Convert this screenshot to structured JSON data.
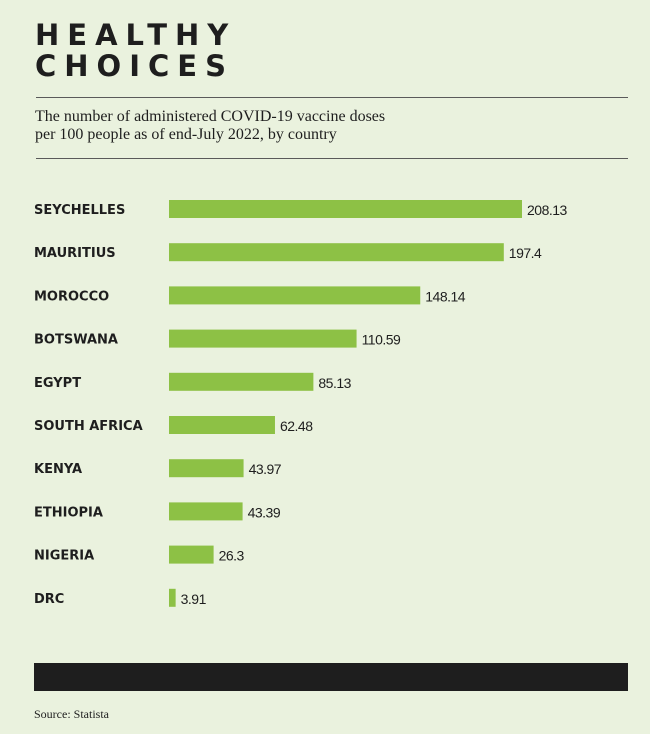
{
  "header": {
    "title_line1": "HEALTHY",
    "title_line2": "CHOICES"
  },
  "footer": {
    "source": "Source: Statista"
  },
  "colors": {
    "bar": "#8dc145",
    "background": "#eaf2de",
    "text": "#1e1e1e"
  },
  "chart_data": {
    "type": "bar",
    "orientation": "horizontal",
    "title": "HEALTHY CHOICES",
    "subtitle_line1": "The number of administered COVID-19 vaccine doses",
    "subtitle_line2": "per 100 people as of end-July 2022, by country",
    "categories": [
      "SEYCHELLES",
      "MAURITIUS",
      "MOROCCO",
      "BOTSWANA",
      "EGYPT",
      "SOUTH AFRICA",
      "KENYA",
      "ETHIOPIA",
      "NIGERIA",
      "DRC"
    ],
    "values": [
      208.13,
      197.4,
      148.14,
      110.59,
      85.13,
      62.48,
      43.97,
      43.39,
      26.3,
      3.91
    ],
    "value_labels": [
      "208.13",
      "197.4",
      "148.14",
      "110.59",
      "85.13",
      "62.48",
      "43.97",
      "43.39",
      "26.3",
      "3.91"
    ],
    "xlabel": "",
    "ylabel": "",
    "xlim": [
      0,
      208.13
    ],
    "grid": false
  }
}
